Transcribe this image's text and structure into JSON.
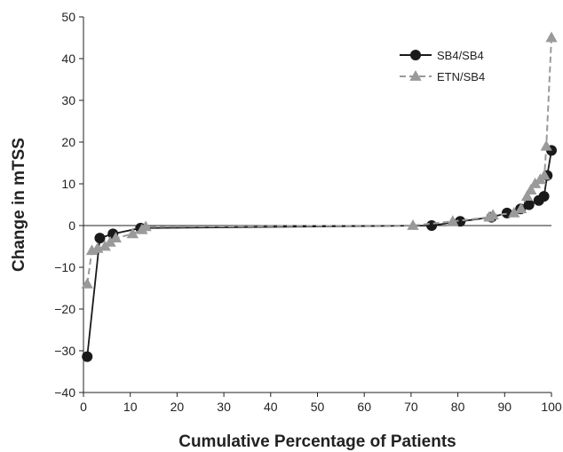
{
  "chart_data": {
    "type": "line",
    "xlabel": "Cumulative Percentage of Patients",
    "ylabel": "Change in mTSS",
    "xlim": [
      0,
      100
    ],
    "ylim": [
      -40,
      50
    ],
    "xticks": [
      0,
      10,
      20,
      30,
      40,
      50,
      60,
      70,
      80,
      90,
      100
    ],
    "yticks": [
      -40,
      -30,
      -20,
      -10,
      0,
      10,
      20,
      30,
      40,
      50
    ],
    "legend_position": "top-right",
    "grid": false,
    "series": [
      {
        "name": "SB4/SB4",
        "color": "#1a1a1a",
        "marker": "circle",
        "line_style": "solid",
        "points": [
          {
            "x": 0.8,
            "y": -31.4
          },
          {
            "x": 3.5,
            "y": -3.0
          },
          {
            "x": 6.3,
            "y": -2.0
          },
          {
            "x": 12.2,
            "y": -0.6
          },
          {
            "x": 74.4,
            "y": 0.0
          },
          {
            "x": 80.5,
            "y": 1.0
          },
          {
            "x": 87.2,
            "y": 2.0
          },
          {
            "x": 90.5,
            "y": 3.0
          },
          {
            "x": 93.4,
            "y": 4.0
          },
          {
            "x": 95.2,
            "y": 5.0
          },
          {
            "x": 97.3,
            "y": 6.0
          },
          {
            "x": 98.4,
            "y": 7.0
          },
          {
            "x": 99.1,
            "y": 12.0
          },
          {
            "x": 100.0,
            "y": 18.0
          }
        ]
      },
      {
        "name": "ETN/SB4",
        "color": "#9a9a9a",
        "marker": "triangle",
        "line_style": "dashed",
        "points": [
          {
            "x": 0.8,
            "y": -14.0
          },
          {
            "x": 1.8,
            "y": -6.0
          },
          {
            "x": 3.0,
            "y": -5.5
          },
          {
            "x": 4.6,
            "y": -5.0
          },
          {
            "x": 5.7,
            "y": -4.0
          },
          {
            "x": 6.9,
            "y": -3.0
          },
          {
            "x": 10.5,
            "y": -2.0
          },
          {
            "x": 12.5,
            "y": -1.0
          },
          {
            "x": 13.3,
            "y": -0.3
          },
          {
            "x": 70.4,
            "y": 0.0
          },
          {
            "x": 78.9,
            "y": 1.0
          },
          {
            "x": 86.7,
            "y": 2.0
          },
          {
            "x": 87.5,
            "y": 2.5
          },
          {
            "x": 92.0,
            "y": 3.0
          },
          {
            "x": 93.5,
            "y": 4.0
          },
          {
            "x": 94.8,
            "y": 7.0
          },
          {
            "x": 95.6,
            "y": 8.5
          },
          {
            "x": 96.5,
            "y": 10.0
          },
          {
            "x": 97.6,
            "y": 11.0
          },
          {
            "x": 98.5,
            "y": 12.0
          },
          {
            "x": 98.9,
            "y": 19.0
          },
          {
            "x": 100.0,
            "y": 45.0
          }
        ]
      }
    ]
  }
}
